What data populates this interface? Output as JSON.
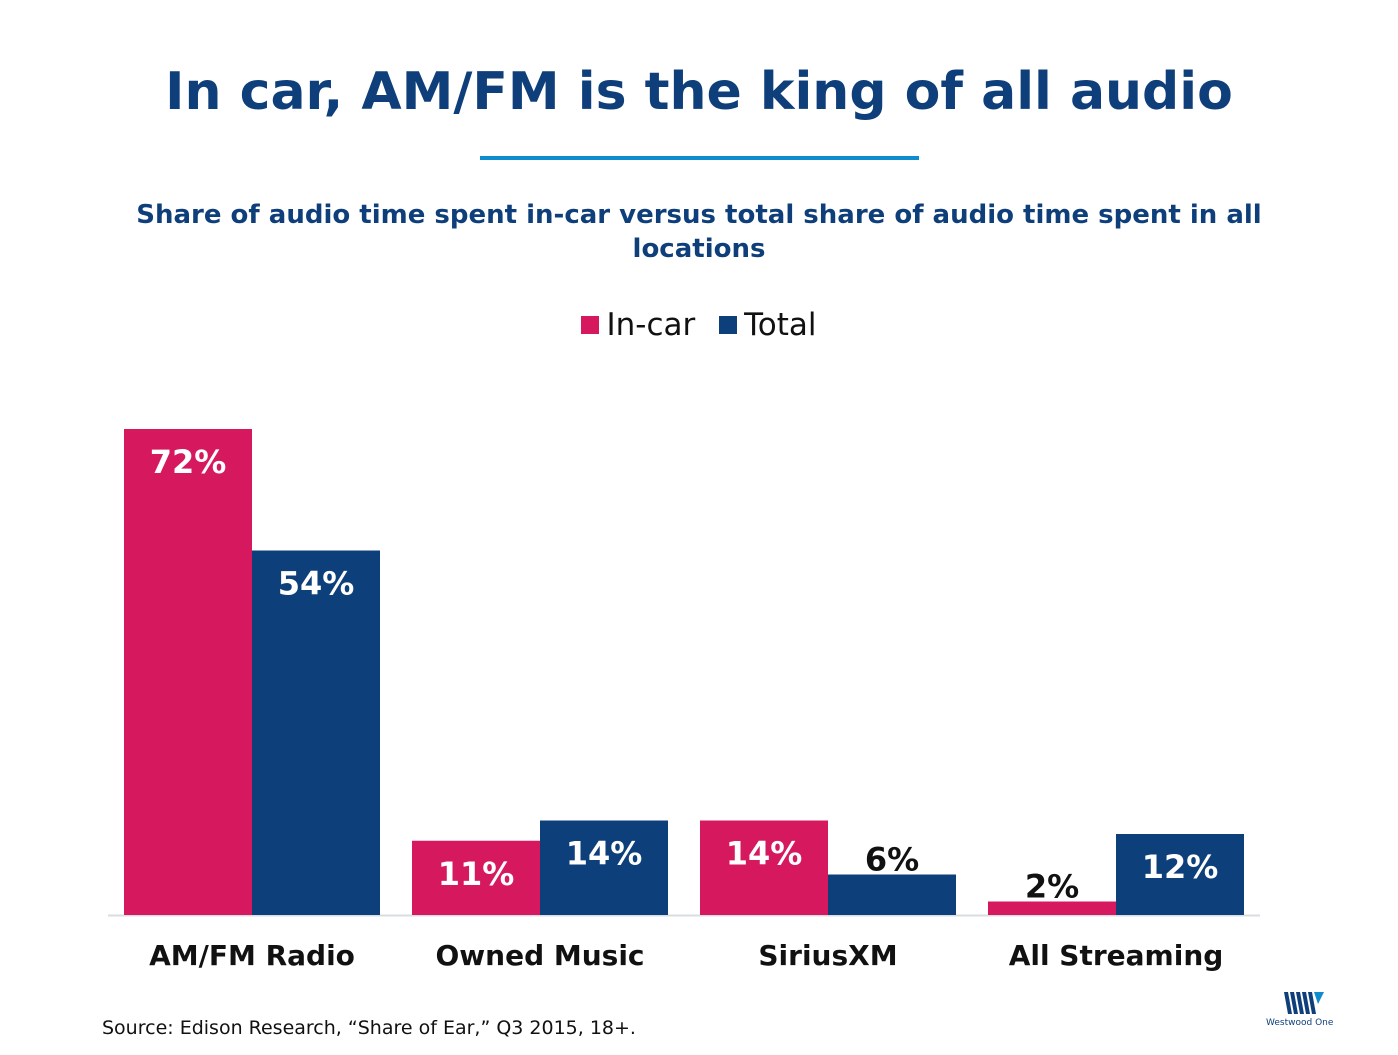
{
  "title": "In car, AM/FM is the king of all audio",
  "subtitle": "Share of audio time spent in-car versus total share of audio time spent in all locations",
  "source": "Source: Edison Research, “Share of Ear,” Q3 2015, 18+.",
  "logo_text": "Westwood One",
  "colors": {
    "title": "#0e3f7a",
    "rule": "#0f8ccd",
    "in_car": "#d6185f",
    "total": "#0d3f7a"
  },
  "chart_data": {
    "type": "bar",
    "categories": [
      "AM/FM Radio",
      "Owned Music",
      "SiriusXM",
      "All Streaming"
    ],
    "series": [
      {
        "name": "In-car",
        "values": [
          72,
          11,
          14,
          2
        ],
        "labels": [
          "72%",
          "11%",
          "14%",
          "2%"
        ],
        "color": "#d6185f"
      },
      {
        "name": "Total",
        "values": [
          54,
          14,
          6,
          12
        ],
        "labels": [
          "54%",
          "14%",
          "6%",
          "12%"
        ],
        "color": "#0d3f7a"
      }
    ],
    "ylim": [
      0,
      72
    ],
    "legend": "top-center",
    "grid": false
  }
}
